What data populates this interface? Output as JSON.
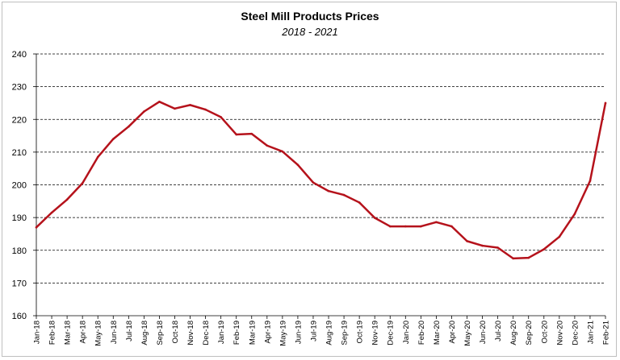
{
  "chart_data": {
    "type": "line",
    "title": "Steel Mill Products Prices",
    "subtitle": "2018 - 2021",
    "xlabel": "",
    "ylabel": "",
    "ylim": [
      160,
      240
    ],
    "yticks": [
      160,
      170,
      180,
      190,
      200,
      210,
      220,
      230,
      240
    ],
    "grid": "horizontal-dashed",
    "legend": "none",
    "line_color": "#b5121b",
    "categories": [
      "Jan-18",
      "Feb-18",
      "Mar-18",
      "Apr-18",
      "May-18",
      "Jun-18",
      "Jul-18",
      "Aug-18",
      "Sep-18",
      "Oct-18",
      "Nov-18",
      "Dec-18",
      "Jan-19",
      "Feb-19",
      "Mar-19",
      "Apr-19",
      "May-19",
      "Jun-19",
      "Jul-19",
      "Aug-19",
      "Sep-19",
      "Oct-19",
      "Nov-19",
      "Dec-19",
      "Jan-20",
      "Feb-20",
      "Mar-20",
      "Apr-20",
      "May-20",
      "Jun-20",
      "Jul-20",
      "Aug-20",
      "Sep-20",
      "Oct-20",
      "Nov-20",
      "Dec-20",
      "Jan-21",
      "Feb-21"
    ],
    "series": [
      {
        "values": [
          187,
          191.5,
          195.5,
          200.5,
          208.5,
          214,
          217.8,
          222.4,
          225.4,
          223.3,
          224.4,
          223,
          220.7,
          215.4,
          215.6,
          212,
          210.2,
          206.1,
          200.7,
          198.1,
          196.9,
          194.6,
          189.9,
          187.3,
          187.3,
          187.3,
          188.6,
          187.3,
          182.8,
          181.4,
          180.8,
          177.5,
          177.7,
          180.3,
          184.1,
          191.1,
          201.2,
          225
        ]
      }
    ]
  }
}
